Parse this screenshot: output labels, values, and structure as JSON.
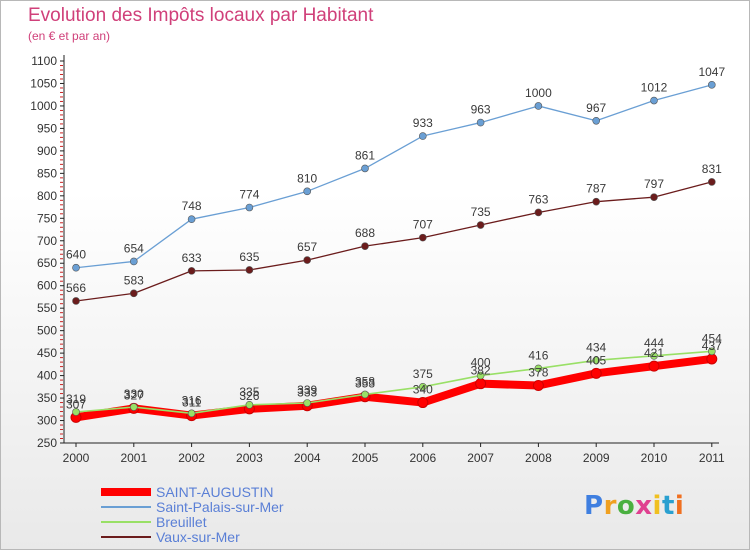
{
  "chart_data": {
    "type": "line",
    "title": "Evolution des Impôts locaux par Habitant",
    "subtitle": "(en € et par an)",
    "xlabel": "",
    "ylabel": "",
    "categories": [
      "2000",
      "2001",
      "2002",
      "2003",
      "2004",
      "2005",
      "2006",
      "2007",
      "2008",
      "2009",
      "2010",
      "2011"
    ],
    "ylim": [
      250,
      1100
    ],
    "yticks": [
      250,
      300,
      350,
      400,
      450,
      500,
      550,
      600,
      650,
      700,
      750,
      800,
      850,
      900,
      950,
      1000,
      1050,
      1100
    ],
    "grid": false,
    "legend_position": "bottom-left",
    "series": [
      {
        "name": "SAINT-AUGUSTIN",
        "color": "#ff0000",
        "values": [
          307,
          327,
          311,
          326,
          333,
          353,
          340,
          382,
          378,
          405,
          421,
          437
        ]
      },
      {
        "name": "Saint-Palais-sur-Mer",
        "color": "#6a9fd4",
        "values": [
          640,
          654,
          748,
          774,
          810,
          861,
          933,
          963,
          1000,
          967,
          1012,
          1047
        ]
      },
      {
        "name": "Breuillet",
        "color": "#99e066",
        "values": [
          319,
          330,
          316,
          335,
          339,
          358,
          375,
          400,
          416,
          434,
          444,
          454
        ]
      },
      {
        "name": "Vaux-sur-Mer",
        "color": "#6b1c1c",
        "values": [
          566,
          583,
          633,
          635,
          657,
          688,
          707,
          735,
          763,
          787,
          797,
          831
        ]
      }
    ]
  },
  "logo": {
    "letters": [
      "P",
      "r",
      "o",
      "x",
      "i",
      "t",
      "i"
    ],
    "colors": [
      "#3f7fe0",
      "#f0a020",
      "#4ab040",
      "#e04090",
      "#f0c020",
      "#2aa0d0",
      "#f07020"
    ]
  }
}
